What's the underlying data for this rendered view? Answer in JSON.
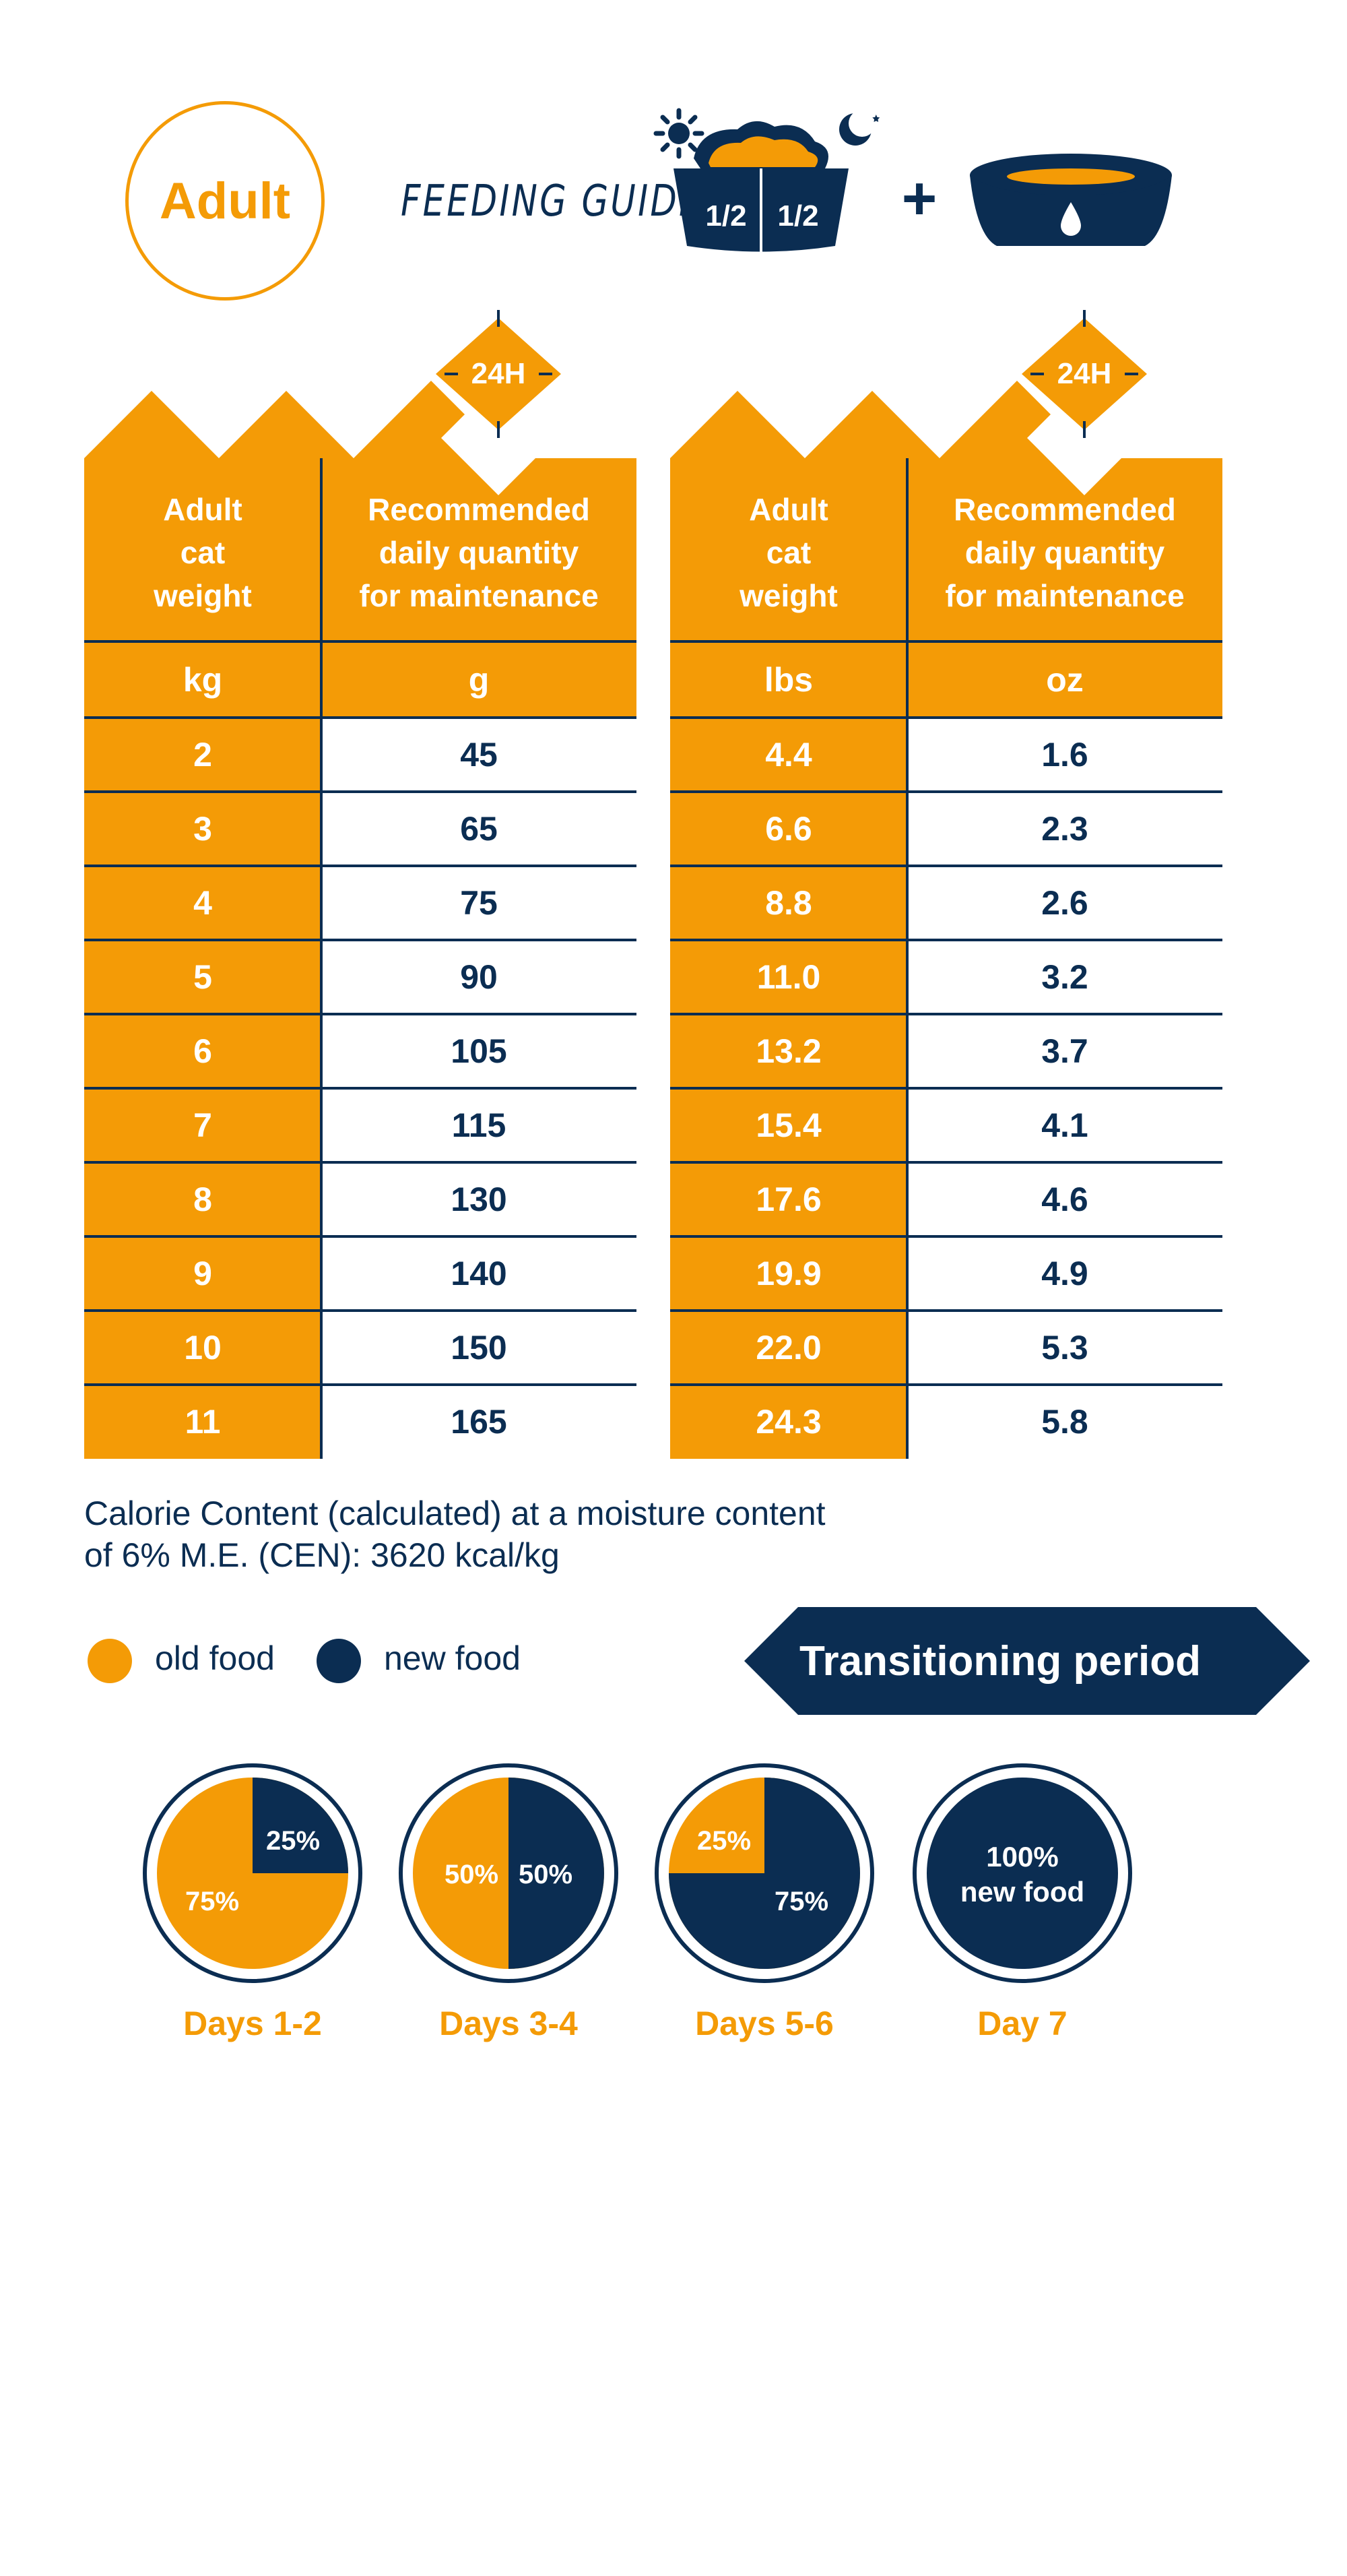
{
  "colors": {
    "orange": "#f49b06",
    "navy": "#0b2d52",
    "white": "#ffffff"
  },
  "header": {
    "badge": "Adult",
    "title": "FEEDING GUIDE",
    "bowl_left_half": "1/2",
    "bowl_right_half": "1/2",
    "plus": "+"
  },
  "metric_table": {
    "badge": "24H",
    "col1_header": [
      "Adult",
      "cat",
      "weight"
    ],
    "col2_header": [
      "Recommended",
      "daily quantity",
      "for maintenance"
    ],
    "unit1": "kg",
    "unit2": "g",
    "rows": [
      [
        "2",
        "45"
      ],
      [
        "3",
        "65"
      ],
      [
        "4",
        "75"
      ],
      [
        "5",
        "90"
      ],
      [
        "6",
        "105"
      ],
      [
        "7",
        "115"
      ],
      [
        "8",
        "130"
      ],
      [
        "9",
        "140"
      ],
      [
        "10",
        "150"
      ],
      [
        "11",
        "165"
      ]
    ]
  },
  "imperial_table": {
    "badge": "24H",
    "col1_header": [
      "Adult",
      "cat",
      "weight"
    ],
    "col2_header": [
      "Recommended",
      "daily quantity",
      "for maintenance"
    ],
    "unit1": "lbs",
    "unit2": "oz",
    "rows": [
      [
        "4.4",
        "1.6"
      ],
      [
        "6.6",
        "2.3"
      ],
      [
        "8.8",
        "2.6"
      ],
      [
        "11.0",
        "3.2"
      ],
      [
        "13.2",
        "3.7"
      ],
      [
        "15.4",
        "4.1"
      ],
      [
        "17.6",
        "4.6"
      ],
      [
        "19.9",
        "4.9"
      ],
      [
        "22.0",
        "5.3"
      ],
      [
        "24.3",
        "5.8"
      ]
    ]
  },
  "calorie": {
    "line1": "Calorie Content (calculated) at a moisture content",
    "line2": "of 6% M.E. (CEN): 3620 kcal/kg"
  },
  "legend": {
    "old": "old food",
    "new": "new food"
  },
  "transition": {
    "label": "Transitioning period",
    "stages": [
      {
        "day": "Days 1-2",
        "old_pct": 75,
        "new_pct": 25,
        "labels": [
          "75%",
          "25%"
        ]
      },
      {
        "day": "Days 3-4",
        "old_pct": 50,
        "new_pct": 50,
        "labels": [
          "50%",
          "50%"
        ]
      },
      {
        "day": "Days 5-6",
        "old_pct": 25,
        "new_pct": 75,
        "labels": [
          "25%",
          "75%"
        ]
      },
      {
        "day": "Day 7",
        "old_pct": 0,
        "new_pct": 100,
        "labels": [
          "100%",
          "new food"
        ]
      }
    ]
  }
}
